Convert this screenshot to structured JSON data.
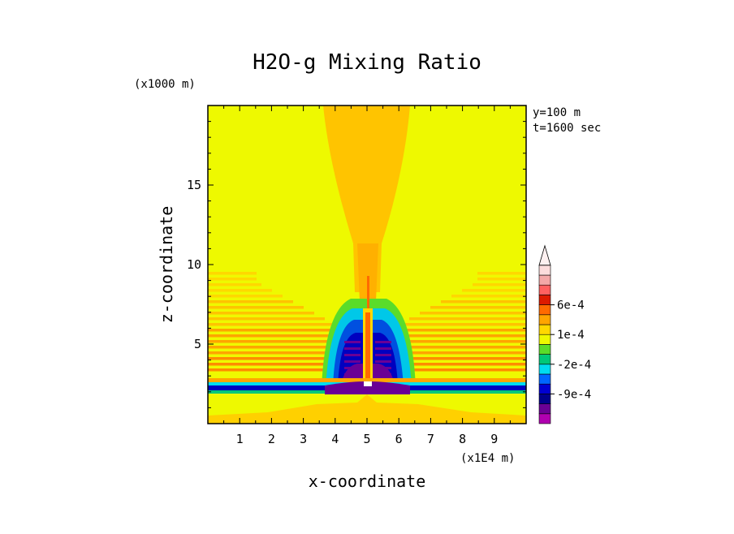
{
  "chart_data": {
    "type": "heatmap",
    "title": "H2O-g Mixing Ratio",
    "xlabel": "x-coordinate",
    "ylabel": "z-coordinate",
    "x_unit": "(x1E4 m)",
    "y_unit": "(x1000 m)",
    "xlim": [
      0,
      10
    ],
    "ylim": [
      0,
      20
    ],
    "x_ticks": [
      "1",
      "2",
      "3",
      "4",
      "5",
      "6",
      "7",
      "8",
      "9"
    ],
    "y_ticks": [
      "5",
      "10",
      "15"
    ],
    "annotations": [
      "y=100 m",
      "t=1600 sec"
    ],
    "colorbar": {
      "tick_labels": [
        "6e-4",
        "1e-4",
        "-2e-4",
        "-9e-4"
      ],
      "colors": [
        "#b000b0",
        "#6a0095",
        "#00008c",
        "#0000d2",
        "#0066ff",
        "#00dcf0",
        "#00c878",
        "#5adc2a",
        "#eef900",
        "#ffd800",
        "#ffa500",
        "#ff6a00",
        "#dd1a00",
        "#ff6060",
        "#f4a8a8",
        "#fcdcdc"
      ]
    }
  }
}
